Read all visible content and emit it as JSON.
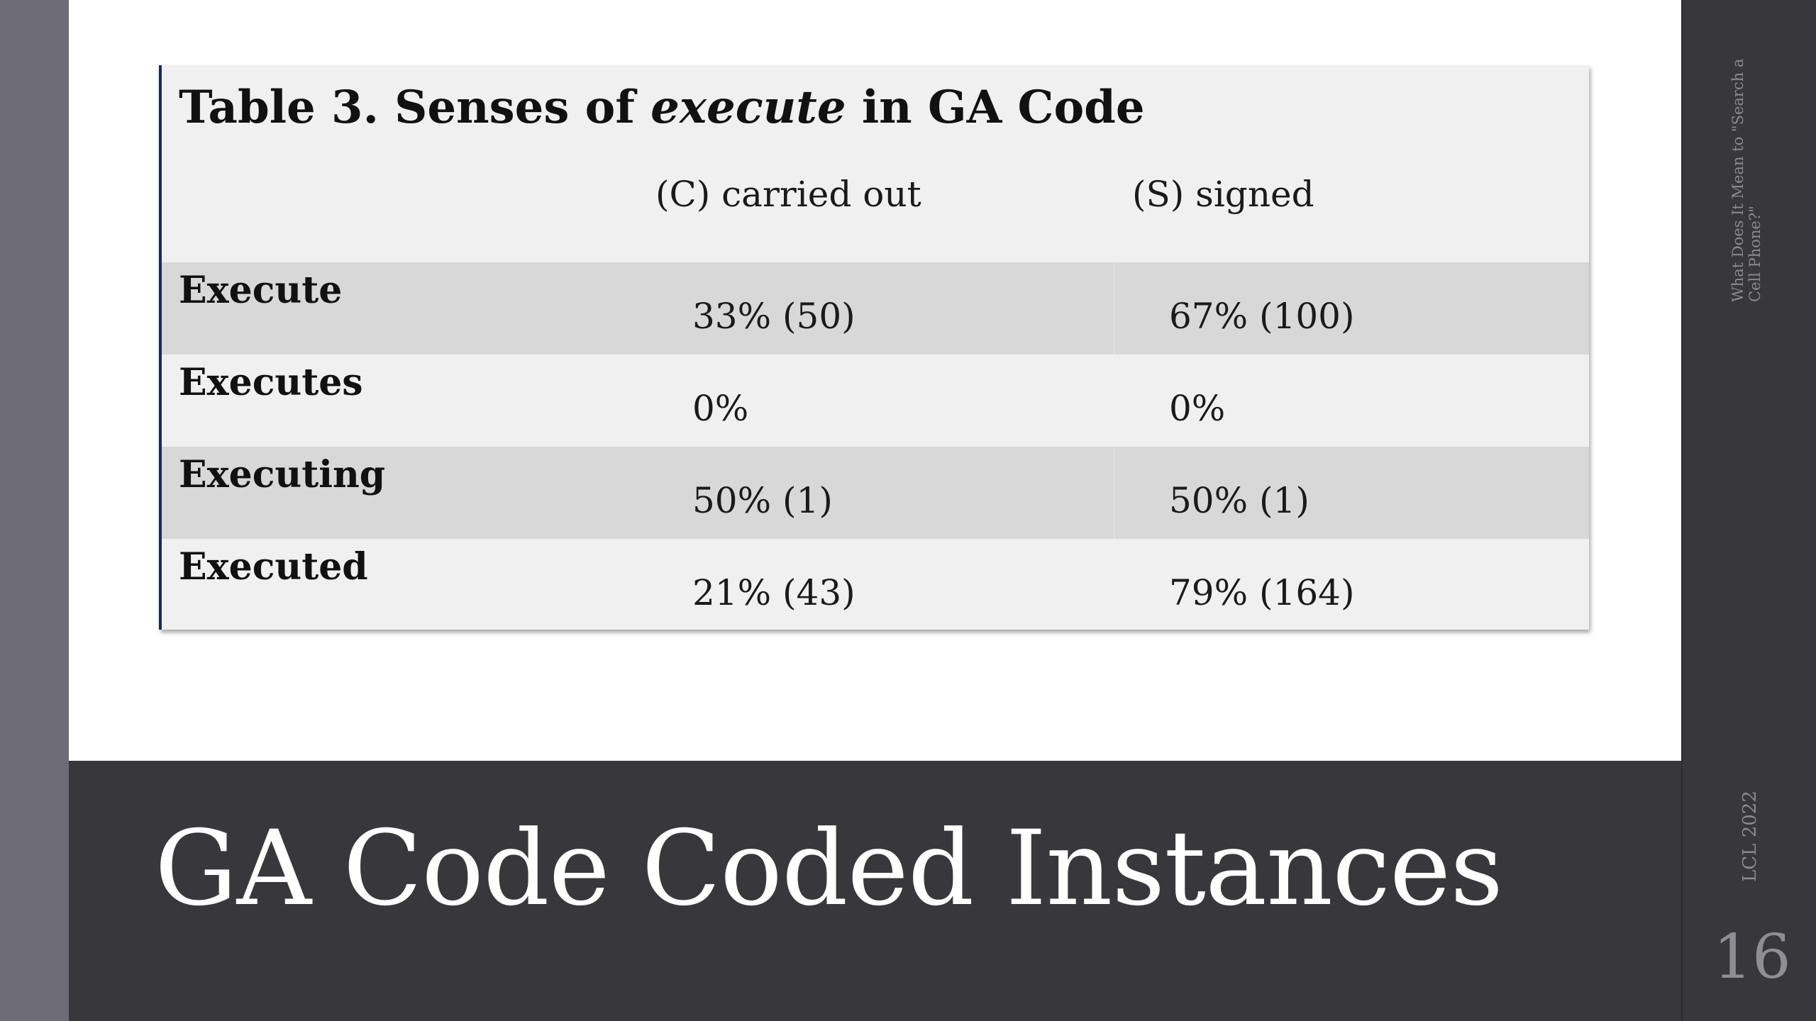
{
  "slide": {
    "title": "GA Code Coded Instances",
    "footer_title": "What Does It Mean to \"Search a Cell Phone?\"",
    "footer_date": "LCL 2022",
    "number": "16"
  },
  "table": {
    "caption_prefix": "Table 3. Senses of ",
    "caption_italic": "execute",
    "caption_suffix": " in GA Code",
    "columns": [
      "(C) carried out",
      "(S) signed"
    ],
    "rows": [
      {
        "label": "Execute",
        "c": "33% (50)",
        "s": "67% (100)"
      },
      {
        "label": "Executes",
        "c": "0%",
        "s": "0%"
      },
      {
        "label": "Executing",
        "c": "50% (1)",
        "s": "50% (1)"
      },
      {
        "label": "Executed",
        "c": "21% (43)",
        "s": "79% (164)"
      }
    ]
  },
  "colors": {
    "title_band": "#38383c",
    "side_strip": "#6e6c76",
    "table_background": "#f0f0f0",
    "row_shade": "#d8d8d8"
  }
}
